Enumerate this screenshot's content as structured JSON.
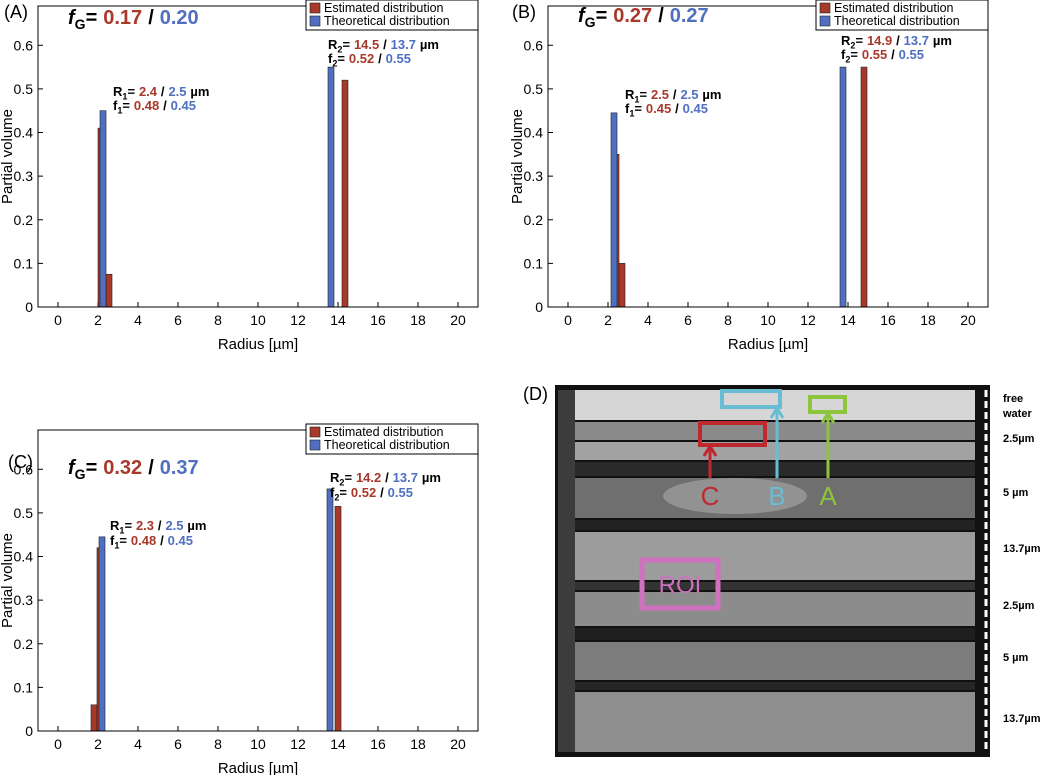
{
  "separator": "/",
  "equals": "=",
  "chart_data": [
    {
      "type": "bar",
      "panel": "(A)",
      "title": {
        "symbol": "f",
        "subscript": "G",
        "estimated": "0.17",
        "theoretical": "0.20"
      },
      "xlabel": "Radius [µm]",
      "ylabel": "Partial volume",
      "xlim": [
        -1,
        21
      ],
      "ylim": [
        0,
        0.69
      ],
      "xticks": [
        0,
        2,
        4,
        6,
        8,
        10,
        12,
        14,
        16,
        18,
        20
      ],
      "yticks": [
        0,
        0.1,
        0.2,
        0.3,
        0.4,
        0.5,
        0.6
      ],
      "legend": "upper right",
      "series": [
        {
          "name": "Estimated distribution",
          "color": "#a8382a",
          "x": [
            2.15,
            2.55,
            14.35
          ],
          "values": [
            0.41,
            0.075,
            0.52
          ]
        },
        {
          "name": "Theoretical distribution",
          "color": "#4f6fc0",
          "x": [
            2.25,
            13.65
          ],
          "values": [
            0.45,
            0.55
          ]
        }
      ],
      "annotations": [
        {
          "symbol": "R",
          "subscript": "1",
          "estimated": "2.4",
          "theoretical": "2.5",
          "unit": "µm"
        },
        {
          "symbol": "f",
          "subscript": "1",
          "estimated": "0.48",
          "theoretical": "0.45"
        },
        {
          "symbol": "R",
          "subscript": "2",
          "estimated": "14.5",
          "theoretical": "13.7",
          "unit": "µm"
        },
        {
          "symbol": "f",
          "subscript": "2",
          "estimated": "0.52",
          "theoretical": "0.55"
        }
      ]
    },
    {
      "type": "bar",
      "panel": "(B)",
      "title": {
        "symbol": "f",
        "subscript": "G",
        "estimated": "0.27",
        "theoretical": "0.27"
      },
      "xlabel": "Radius [µm]",
      "ylabel": "Partial volume",
      "xlim": [
        -1,
        21
      ],
      "ylim": [
        0,
        0.69
      ],
      "xticks": [
        0,
        2,
        4,
        6,
        8,
        10,
        12,
        14,
        16,
        18,
        20
      ],
      "yticks": [
        0,
        0.1,
        0.2,
        0.3,
        0.4,
        0.5,
        0.6
      ],
      "legend": "upper right",
      "series": [
        {
          "name": "Estimated distribution",
          "color": "#a8382a",
          "x": [
            2.4,
            2.7,
            14.8
          ],
          "values": [
            0.35,
            0.1,
            0.55
          ]
        },
        {
          "name": "Theoretical distribution",
          "color": "#4f6fc0",
          "x": [
            2.3,
            13.75
          ],
          "values": [
            0.445,
            0.55
          ]
        }
      ],
      "annotations": [
        {
          "symbol": "R",
          "subscript": "1",
          "estimated": "2.5",
          "theoretical": "2.5",
          "unit": "µm"
        },
        {
          "symbol": "f",
          "subscript": "1",
          "estimated": "0.45",
          "theoretical": "0.45"
        },
        {
          "symbol": "R",
          "subscript": "2",
          "estimated": "14.9",
          "theoretical": "13.7",
          "unit": "µm"
        },
        {
          "symbol": "f",
          "subscript": "2",
          "estimated": "0.55",
          "theoretical": "0.55"
        }
      ]
    },
    {
      "type": "bar",
      "panel": "(C)",
      "title": {
        "symbol": "f",
        "subscript": "G",
        "estimated": "0.32",
        "theoretical": "0.37"
      },
      "xlabel": "Radius [µm]",
      "ylabel": "Partial volume",
      "xlim": [
        -1,
        21
      ],
      "ylim": [
        0,
        0.69
      ],
      "xticks": [
        0,
        2,
        4,
        6,
        8,
        10,
        12,
        14,
        16,
        18,
        20
      ],
      "yticks": [
        0,
        0.1,
        0.2,
        0.3,
        0.4,
        0.5,
        0.6
      ],
      "legend": "upper right",
      "series": [
        {
          "name": "Estimated distribution",
          "color": "#a8382a",
          "x": [
            1.8,
            2.1,
            14.0
          ],
          "values": [
            0.06,
            0.42,
            0.515
          ]
        },
        {
          "name": "Theoretical distribution",
          "color": "#4f6fc0",
          "x": [
            2.2,
            13.6
          ],
          "values": [
            0.445,
            0.555
          ]
        }
      ],
      "annotations": [
        {
          "symbol": "R",
          "subscript": "1",
          "estimated": "2.3",
          "theoretical": "2.5",
          "unit": "µm"
        },
        {
          "symbol": "f",
          "subscript": "1",
          "estimated": "0.48",
          "theoretical": "0.45"
        },
        {
          "symbol": "R",
          "subscript": "2",
          "estimated": "14.2",
          "theoretical": "13.7",
          "unit": "µm"
        },
        {
          "symbol": "f",
          "subscript": "2",
          "estimated": "0.52",
          "theoretical": "0.55"
        }
      ]
    }
  ],
  "panel_d": {
    "label": "(D)",
    "scale_labels": [
      "free",
      "water",
      "2.5µm",
      "5 µm",
      "13.7µm",
      "2.5µm",
      "5 µm",
      "13.7µm"
    ],
    "roi": "ROI",
    "markers": [
      "C",
      "B",
      "A"
    ]
  }
}
